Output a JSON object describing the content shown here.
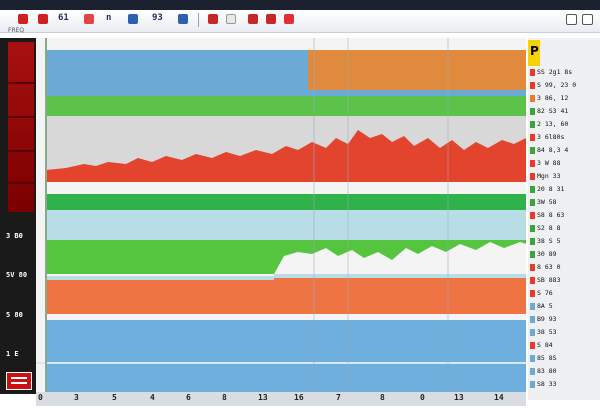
{
  "toolbar": {
    "labels": [
      "61",
      "n",
      "93"
    ],
    "icon_colors": [
      "#d21f1f",
      "#d21f1f",
      "#e04545",
      "#2c5fb0",
      "#2c5fb0",
      "#c62828",
      "#c62828",
      "#e03030"
    ]
  },
  "sidebar": {
    "title": "FREQ",
    "row_labels": [
      "3 B0",
      "5V 80",
      "5 80",
      "1 E"
    ]
  },
  "x_axis": {
    "ticks": [
      "0",
      "3",
      "5",
      "4",
      "6",
      "8",
      "13",
      "16",
      "7",
      "8",
      "0",
      "13",
      "14"
    ]
  },
  "legend": {
    "header_letter": "P",
    "rows": [
      {
        "text": "SS 2g1 8s",
        "color": "#e8392b"
      },
      {
        "text": "S 99, 23 0",
        "color": "#e8392b"
      },
      {
        "text": "3 86, 12",
        "color": "#f07a30"
      },
      {
        "text": "82 S3 41",
        "color": "#3aa63a"
      },
      {
        "text": "2 13, 60",
        "color": "#3aa63a"
      },
      {
        "text": "3 6l80s",
        "color": "#e8392b"
      },
      {
        "text": "84 8,3 4",
        "color": "#3aa63a"
      },
      {
        "text": "3 W 88",
        "color": "#e8392b"
      },
      {
        "text": "Mgn 33",
        "color": "#e8392b"
      },
      {
        "text": "20 8 31",
        "color": "#3aa63a"
      },
      {
        "text": "3W 58",
        "color": "#3aa63a"
      },
      {
        "text": "S8 8 63",
        "color": "#e8392b"
      },
      {
        "text": "S2 8 8",
        "color": "#3aa63a"
      },
      {
        "text": "38 S 5",
        "color": "#3aa63a"
      },
      {
        "text": "30 89",
        "color": "#3aa63a"
      },
      {
        "text": "8 63 0",
        "color": "#e8392b"
      },
      {
        "text": "SB 883",
        "color": "#e8392b"
      },
      {
        "text": "S 76",
        "color": "#e8392b"
      },
      {
        "text": "8A 5",
        "color": "#6aaad4"
      },
      {
        "text": "B9 93",
        "color": "#6aaad4"
      },
      {
        "text": "38 53",
        "color": "#6aaad4"
      },
      {
        "text": "S 84",
        "color": "#e8392b"
      },
      {
        "text": "85 8S",
        "color": "#6aaad4"
      },
      {
        "text": "83 80",
        "color": "#6aaad4"
      },
      {
        "text": "S8 33",
        "color": "#6aaad4"
      }
    ]
  },
  "chart_data": {
    "type": "area",
    "bands": [
      {
        "color": "#6aaad4",
        "label": ""
      },
      {
        "color": "#e08a3e",
        "label": ""
      },
      {
        "color": "#5cc24a",
        "label": ""
      },
      {
        "color": "#e2442e",
        "label": ""
      },
      {
        "color": "#2fb24a",
        "label": ""
      },
      {
        "color": "#b9dde6",
        "label": ""
      },
      {
        "color": "#55c43f",
        "label": ""
      },
      {
        "color": "#ee7444",
        "label": ""
      },
      {
        "color": "#6eafdd",
        "label": ""
      }
    ],
    "xlabel": "",
    "ylabel": "",
    "grid": true
  }
}
